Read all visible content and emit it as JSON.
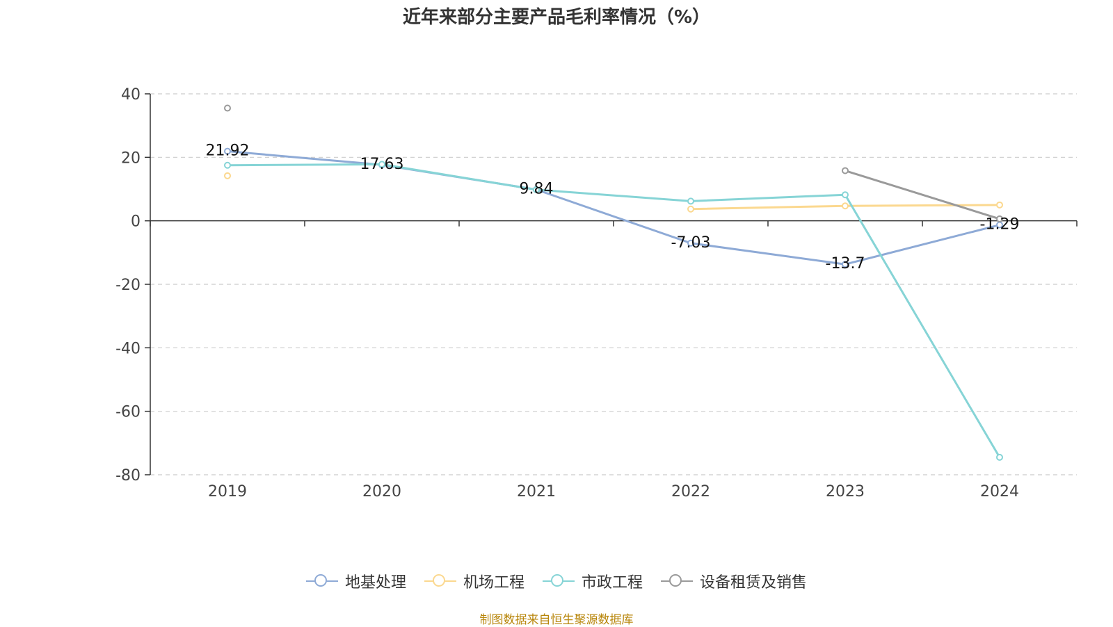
{
  "chart_data": {
    "type": "line",
    "title": "近年来部分主要产品毛利率情况（%）",
    "categories": [
      "2019",
      "2020",
      "2021",
      "2022",
      "2023",
      "2024"
    ],
    "ylim": [
      -80,
      40
    ],
    "yticks": [
      "40",
      "20",
      "0",
      "-20",
      "-40",
      "-60",
      "-80"
    ],
    "grid": true,
    "legend_position": "bottom",
    "series": [
      {
        "name": "地基处理",
        "color": "#8eaad6",
        "values": [
          21.92,
          17.63,
          9.84,
          -7.03,
          -13.7,
          -1.29
        ],
        "labels": [
          "21.92",
          "17.63",
          "9.84",
          "-7.03",
          "-13.7",
          "-1.29"
        ]
      },
      {
        "name": "机场工程",
        "color": "#fbd88f",
        "values": [
          14.2,
          null,
          null,
          3.7,
          4.7,
          5.0
        ]
      },
      {
        "name": "市政工程",
        "color": "#86d4d6",
        "values": [
          17.5,
          17.8,
          9.8,
          6.2,
          8.2,
          -74.5
        ]
      },
      {
        "name": "设备租赁及销售",
        "color": "#9a9a9a",
        "values": [
          35.5,
          null,
          null,
          null,
          15.8,
          0.6
        ]
      }
    ]
  },
  "footer": {
    "source": "制图数据来自恒生聚源数据库"
  }
}
